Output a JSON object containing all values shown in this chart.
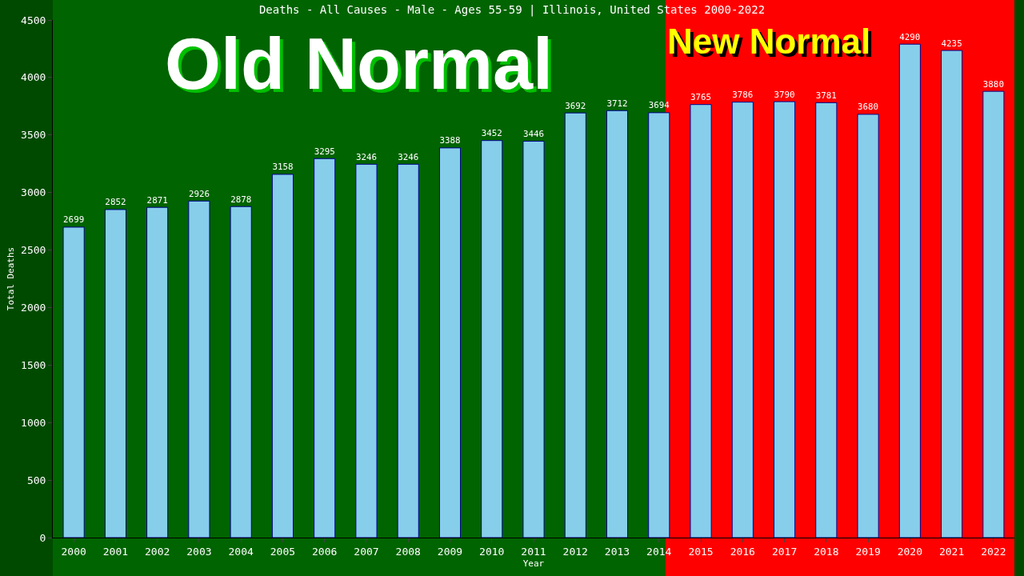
{
  "chart_data": {
    "type": "bar",
    "title": "Deaths - All Causes - Male - Ages 55-59 | Illinois, United States 2000-2022",
    "xlabel": "Year",
    "ylabel": "Total Deaths",
    "x": [
      2000,
      2001,
      2002,
      2003,
      2004,
      2005,
      2006,
      2007,
      2008,
      2009,
      2010,
      2011,
      2012,
      2013,
      2014,
      2015,
      2016,
      2017,
      2018,
      2019,
      2020,
      2021,
      2022
    ],
    "values": [
      2699,
      2852,
      2871,
      2926,
      2878,
      3158,
      3295,
      3246,
      3246,
      3388,
      3452,
      3446,
      3692,
      3712,
      3694,
      3765,
      3786,
      3790,
      3781,
      3680,
      4290,
      4235,
      3880
    ],
    "color": "#87ceeb",
    "data_labels": true,
    "xlim": [
      1999.5,
      2022.5
    ],
    "xticks": [
      2000,
      2001,
      2002,
      2003,
      2004,
      2005,
      2006,
      2007,
      2008,
      2009,
      2010,
      2011,
      2012,
      2013,
      2014,
      2015,
      2016,
      2017,
      2018,
      2019,
      2020,
      2021,
      2022
    ],
    "ylim": [
      0,
      4500
    ],
    "yticks": [
      0,
      500,
      1000,
      1500,
      2000,
      2500,
      3000,
      3500,
      4000,
      4500
    ],
    "bands": [
      {
        "axis": "x",
        "from": 1999.5,
        "to": 2014.15,
        "label": "Old Normal",
        "color": "#006400"
      },
      {
        "axis": "x",
        "from": 2014.15,
        "to": 2022.5,
        "label": "New Normal",
        "color": "#ff0000"
      }
    ],
    "grid": false
  }
}
